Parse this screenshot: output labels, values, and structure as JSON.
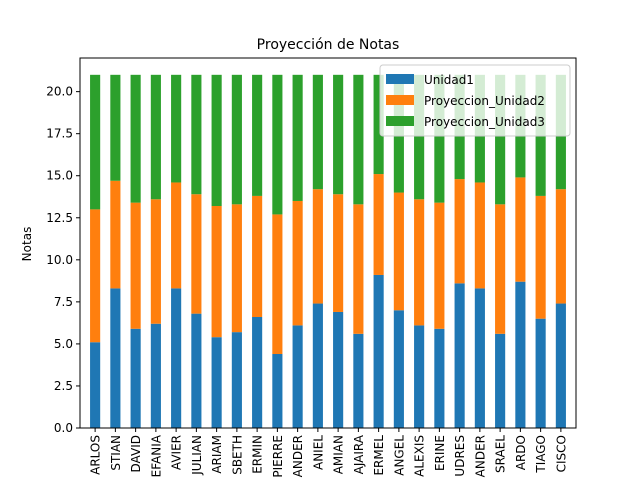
{
  "chart_data": {
    "type": "bar",
    "stacked": true,
    "title": "Proyección de Notas",
    "xlabel": "",
    "ylabel": "Notas",
    "ylim": [
      0,
      22
    ],
    "yticks": [
      "0.0",
      "2.5",
      "5.0",
      "7.5",
      "10.0",
      "12.5",
      "15.0",
      "17.5",
      "20.0"
    ],
    "categories": [
      "ARLOS",
      "STIAN",
      "DAVID",
      "EFANIA",
      "AVIER",
      "JULIAN",
      "ARIAM",
      "SBETH",
      "ERMIN",
      "PIERRE",
      "ANDER",
      "ANIEL",
      "AMIAN",
      "AJAIRA",
      "ERMEL",
      "ANGEL",
      "ALEXIS",
      "ERINE",
      "UDRES",
      "ANDER",
      "SRAEL",
      "ARDO",
      "TIAGO",
      "CISCO"
    ],
    "legend_position": "upper right",
    "series": [
      {
        "name": "Unidad1",
        "color": "#1f77b4",
        "values": [
          5.1,
          8.3,
          5.9,
          6.2,
          8.3,
          6.8,
          5.4,
          5.7,
          6.6,
          4.4,
          6.1,
          7.4,
          6.9,
          5.6,
          9.1,
          7.0,
          6.1,
          5.9,
          8.6,
          8.3,
          5.6,
          8.7,
          6.5,
          7.4
        ]
      },
      {
        "name": "Proyeccion_Unidad2",
        "color": "#ff7f0e",
        "values": [
          7.9,
          6.4,
          7.5,
          7.4,
          6.3,
          7.1,
          7.8,
          7.6,
          7.2,
          8.3,
          7.4,
          6.8,
          7.0,
          7.7,
          6.0,
          7.0,
          7.5,
          7.5,
          6.2,
          6.3,
          7.7,
          6.2,
          7.3,
          6.8
        ]
      },
      {
        "name": "Proyeccion_Unidad3",
        "color": "#2ca02c",
        "values": [
          8.0,
          6.3,
          7.6,
          7.4,
          6.4,
          7.1,
          7.8,
          7.7,
          7.2,
          8.3,
          7.5,
          6.8,
          7.1,
          7.7,
          5.9,
          7.0,
          7.4,
          7.6,
          6.2,
          6.4,
          7.7,
          6.1,
          7.2,
          6.8
        ]
      }
    ]
  }
}
